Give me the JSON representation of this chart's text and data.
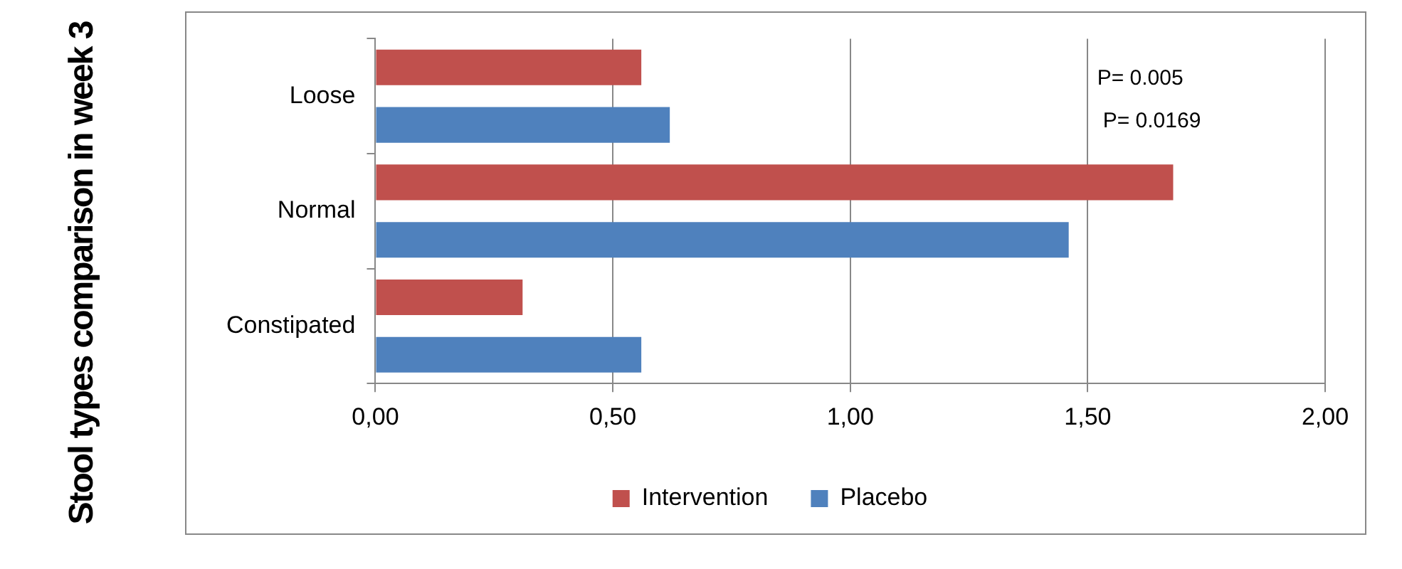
{
  "chart_data": {
    "type": "bar",
    "orientation": "horizontal",
    "ylabel": "Stool types comparison in week 3",
    "categories": [
      "Loose",
      "Normal",
      "Constipated"
    ],
    "series": [
      {
        "name": "Intervention",
        "color": "#c0504d",
        "values": [
          0.56,
          1.68,
          0.31
        ]
      },
      {
        "name": "Placebo",
        "color": "#4f81bd",
        "values": [
          0.62,
          1.46,
          0.56
        ]
      }
    ],
    "xlim": [
      0,
      2
    ],
    "xticks": [
      {
        "value": 0,
        "label": "0,00"
      },
      {
        "value": 0.5,
        "label": "0,50"
      },
      {
        "value": 1,
        "label": "1,00"
      },
      {
        "value": 1.5,
        "label": "1,50"
      },
      {
        "value": 2,
        "label": "2,00"
      }
    ],
    "annotations": [
      "P= 0.005",
      "P= 0.0169"
    ],
    "grid": "x",
    "legend": "bottom"
  }
}
